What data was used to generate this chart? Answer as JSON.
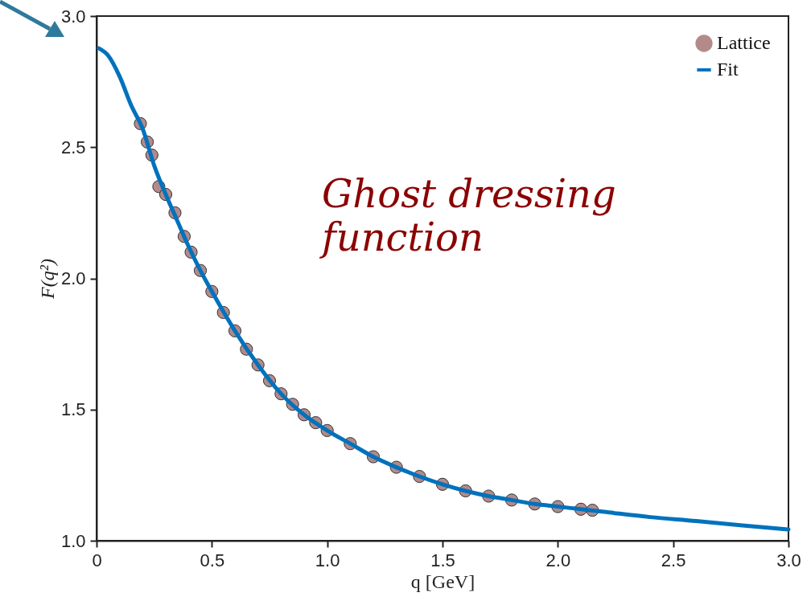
{
  "chart_data": {
    "type": "line",
    "xlabel": "q [GeV]",
    "ylabel": "F(q²)",
    "xlim": [
      0,
      3
    ],
    "ylim": [
      1,
      3
    ],
    "xticks": [
      0,
      0.5,
      {
        "value": 1,
        "label": "1.0"
      },
      1.5,
      {
        "value": 2,
        "label": "2.0"
      },
      2.5,
      {
        "value": 3,
        "label": "3.0"
      }
    ],
    "yticks": [
      {
        "value": 1,
        "label": "1.0"
      },
      1.5,
      {
        "value": 2,
        "label": "2.0"
      },
      2.5,
      {
        "value": 3,
        "label": "3.0"
      }
    ],
    "grid": false,
    "legend": "top right",
    "line_style": "solid",
    "annotations": [
      "Ghost dressing function"
    ],
    "series": [
      {
        "name": "Lattice",
        "type": "scatter",
        "marker": "circle",
        "color": "#b38a8a",
        "x": [
          0.19,
          0.22,
          0.24,
          0.27,
          0.3,
          0.34,
          0.38,
          0.41,
          0.45,
          0.5,
          0.55,
          0.6,
          0.65,
          0.7,
          0.75,
          0.8,
          0.85,
          0.9,
          0.95,
          1.0,
          1.1,
          1.2,
          1.3,
          1.4,
          1.5,
          1.6,
          1.7,
          1.8,
          1.9,
          2.0,
          2.1,
          2.15
        ],
        "values": [
          2.59,
          2.52,
          2.47,
          2.35,
          2.32,
          2.25,
          2.16,
          2.1,
          2.03,
          1.95,
          1.87,
          1.8,
          1.73,
          1.67,
          1.61,
          1.56,
          1.52,
          1.48,
          1.45,
          1.42,
          1.37,
          1.32,
          1.28,
          1.245,
          1.215,
          1.19,
          1.17,
          1.155,
          1.14,
          1.13,
          1.12,
          1.116
        ]
      },
      {
        "name": "Fit",
        "color": "#0072bd",
        "x": [
          0.01,
          0.05,
          0.1,
          0.15,
          0.2,
          0.25,
          0.3,
          0.35,
          0.4,
          0.45,
          0.5,
          0.6,
          0.7,
          0.8,
          0.9,
          1.0,
          1.1,
          1.2,
          1.3,
          1.4,
          1.5,
          1.6,
          1.7,
          1.8,
          1.9,
          2.0,
          2.1,
          2.2,
          2.4,
          2.6,
          2.8,
          3.0
        ],
        "values": [
          2.877,
          2.85,
          2.77,
          2.66,
          2.57,
          2.43,
          2.32,
          2.22,
          2.12,
          2.03,
          1.95,
          1.8,
          1.67,
          1.56,
          1.48,
          1.42,
          1.37,
          1.32,
          1.28,
          1.245,
          1.215,
          1.19,
          1.17,
          1.155,
          1.14,
          1.13,
          1.12,
          1.11,
          1.09,
          1.075,
          1.058,
          1.043
        ]
      }
    ]
  }
}
